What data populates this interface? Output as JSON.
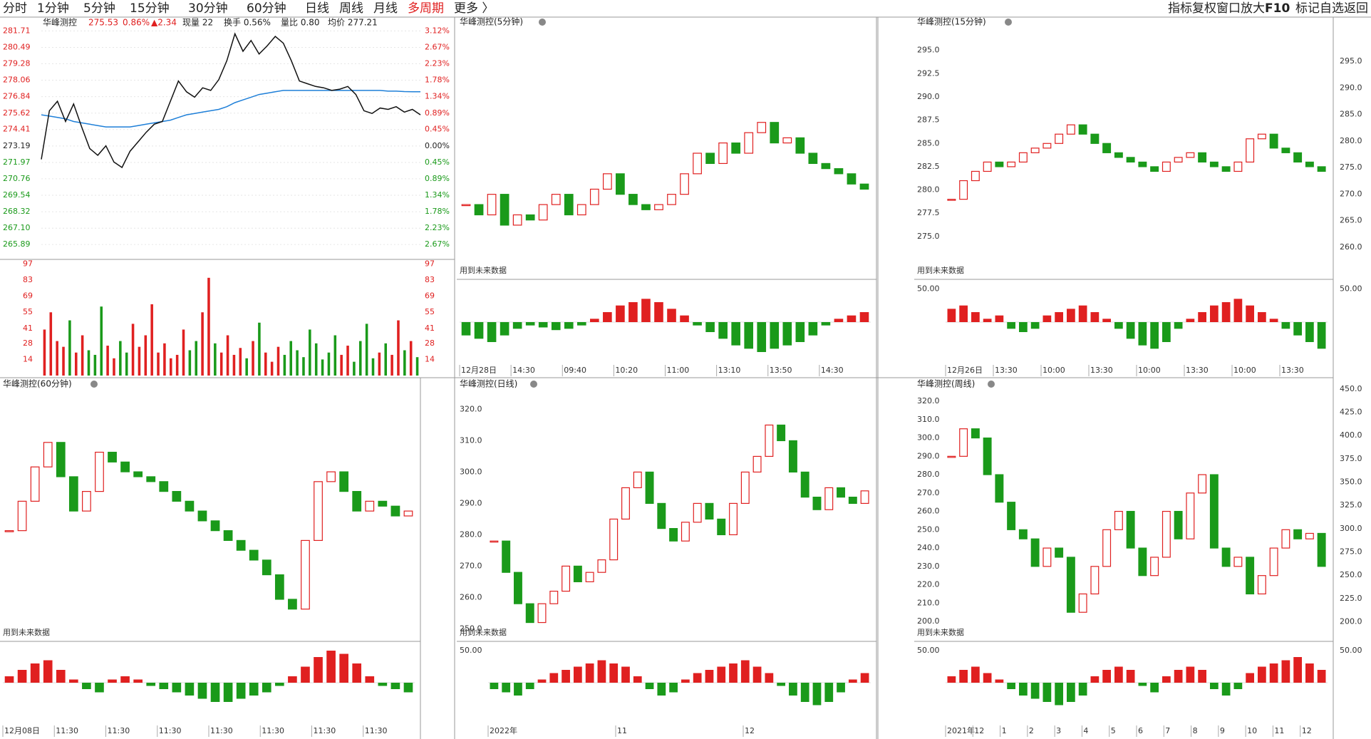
{
  "toolbar": {
    "left": [
      "分时",
      "1分钟",
      "5分钟",
      "15分钟",
      "30分钟",
      "60分钟",
      "日线",
      "周线",
      "月线",
      "多周期",
      "更多 〉"
    ],
    "right": [
      "指标",
      "复权",
      "窗口",
      "放大",
      "F10",
      "标记",
      "自选",
      "返回"
    ]
  },
  "intraday": {
    "header": {
      "name": "华峰测控",
      "price": "275.53",
      "pct": "0.86%",
      "change": "▲2.34",
      "volume": "现量 22",
      "turnover": "换手 0.56%",
      "ratio": "量比 0.80",
      "avg": "均价 277.21"
    },
    "ylim": [
      264.79,
      282.68
    ],
    "ylabels": [
      "281.71",
      "280.49",
      "279.28",
      "278.06",
      "276.84",
      "275.62",
      "274.41",
      "273.19",
      "271.97",
      "270.76",
      "269.54",
      "268.32",
      "267.10",
      "265.89"
    ],
    "ylabels_right": [
      "3.12%",
      "2.67%",
      "2.23%",
      "1.78%",
      "1.34%",
      "0.89%",
      "0.45%",
      "0.00%",
      "0.45%",
      "0.89%",
      "1.34%",
      "1.78%",
      "2.23%",
      "2.67%"
    ],
    "price": [
      272.2,
      275.8,
      276.5,
      275.0,
      276.3,
      274.6,
      273.0,
      272.5,
      273.2,
      272.0,
      271.6,
      272.8,
      273.5,
      274.2,
      274.8,
      275.0,
      276.5,
      278.0,
      277.2,
      276.8,
      277.5,
      277.3,
      278.1,
      279.5,
      281.5,
      280.2,
      281.0,
      280.0,
      280.6,
      281.3,
      280.8,
      279.5,
      278.0,
      277.8,
      277.6,
      277.5,
      277.3,
      277.4,
      277.6,
      277.0,
      275.8,
      275.6,
      276.0,
      275.9,
      276.1,
      275.7,
      275.9,
      275.5
    ],
    "avg": [
      275.5,
      275.4,
      275.3,
      275.2,
      275.0,
      274.9,
      274.8,
      274.7,
      274.6,
      274.6,
      274.6,
      274.6,
      274.7,
      274.8,
      274.9,
      275.0,
      275.1,
      275.3,
      275.5,
      275.6,
      275.7,
      275.8,
      275.9,
      276.1,
      276.4,
      276.6,
      276.8,
      277.0,
      277.1,
      277.2,
      277.3,
      277.3,
      277.3,
      277.3,
      277.3,
      277.3,
      277.3,
      277.3,
      277.3,
      277.3,
      277.3,
      277.3,
      277.3,
      277.25,
      277.25,
      277.22,
      277.21,
      277.21
    ],
    "vlim": [
      0,
      101
    ],
    "vlabels": [
      "97",
      "83",
      "69",
      "55",
      "41",
      "28",
      "14"
    ],
    "volume": [
      40,
      55,
      30,
      25,
      48,
      20,
      35,
      22,
      18,
      60,
      26,
      15,
      30,
      20,
      45,
      25,
      35,
      62,
      20,
      28,
      15,
      18,
      40,
      22,
      30,
      55,
      85,
      28,
      20,
      35,
      18,
      24,
      15,
      30,
      46,
      20,
      12,
      25,
      18,
      30,
      22,
      16,
      40,
      28,
      14,
      20,
      35,
      18,
      26,
      12,
      30,
      45,
      15,
      20,
      28,
      18,
      48,
      22,
      30,
      16
    ]
  },
  "panels": [
    {
      "title": "华峰测控(5分钟)",
      "ylim": [
        268,
        292
      ],
      "note": "用到未来数据",
      "xlabels": [
        "12月28日",
        "14:30",
        "09:40",
        "10:20",
        "11:00",
        "13:10",
        "13:50",
        "14:30"
      ],
      "closes": [
        275,
        274,
        276,
        273,
        274,
        273.5,
        275,
        276,
        274,
        275,
        276.5,
        278,
        276,
        275,
        274.5,
        275,
        276,
        278,
        280,
        279,
        281,
        280,
        282,
        283,
        281,
        281.5,
        280,
        279,
        278.5,
        278,
        277,
        276.5
      ],
      "osc": [
        -20,
        -25,
        -30,
        -20,
        -10,
        -5,
        -8,
        -12,
        -10,
        -5,
        5,
        15,
        25,
        30,
        35,
        30,
        20,
        10,
        -5,
        -15,
        -25,
        -35,
        -40,
        -45,
        -40,
        -35,
        -30,
        -20,
        -5,
        5,
        10,
        15
      ]
    },
    {
      "title": "华峰测控(15分钟)",
      "ylim": [
        270.7,
        297.2
      ],
      "note": "用到未来数据",
      "ylabels": [
        "295.0",
        "292.5",
        "290.0",
        "287.5",
        "285.0",
        "282.5",
        "280.0",
        "277.5",
        "275.0"
      ],
      "y2lim": [
        254.5,
        300.9
      ],
      "ylabels_right": [
        "295.0",
        "290.0",
        "285.0",
        "280.0",
        "275.0",
        "270.0",
        "265.0",
        "260.0"
      ],
      "ind_tick": {
        "value": 50,
        "label": "50.00"
      },
      "ind_tick_right": {
        "value": 50,
        "label": "50.00"
      },
      "xlabels": [
        "12月26日",
        "13:30",
        "10:00",
        "13:30",
        "10:00",
        "13:30",
        "10:00",
        "13:30"
      ],
      "closes": [
        279,
        281,
        282,
        283,
        282.5,
        283,
        284,
        284.5,
        285,
        286,
        287,
        286,
        285,
        284,
        283.5,
        283,
        282.5,
        282,
        283,
        283.5,
        284,
        283,
        282.5,
        282,
        283,
        285.5,
        286,
        284.5,
        284,
        283,
        282.5,
        282
      ],
      "osc": [
        20,
        25,
        15,
        5,
        10,
        -10,
        -15,
        -10,
        10,
        15,
        20,
        25,
        15,
        5,
        -10,
        -25,
        -35,
        -40,
        -30,
        -10,
        5,
        15,
        25,
        30,
        35,
        25,
        15,
        5,
        -10,
        -20,
        -30,
        -40
      ]
    },
    {
      "title": "华峰测控(60分钟)",
      "ylim": [
        250,
        300
      ],
      "note": "用到未来数据",
      "xlabels": [
        "12月08日",
        "11:30",
        "11:30",
        "11:30",
        "11:30",
        "11:30",
        "11:30",
        "11:30"
      ],
      "closes": [
        272,
        278,
        285,
        290,
        283,
        276,
        280,
        288,
        286,
        284,
        283,
        282,
        280,
        278,
        276,
        274,
        272,
        270,
        268,
        266,
        263,
        258,
        256,
        270,
        282,
        284,
        280,
        276,
        278,
        277,
        275,
        276
      ],
      "osc": [
        10,
        20,
        30,
        35,
        20,
        5,
        -10,
        -15,
        5,
        10,
        5,
        -5,
        -10,
        -15,
        -20,
        -25,
        -30,
        -30,
        -25,
        -20,
        -15,
        -5,
        10,
        25,
        40,
        50,
        45,
        30,
        10,
        -5,
        -10,
        -15
      ]
    },
    {
      "title": "华峰测控(日线)",
      "ylim": [
        246.9,
        325.1
      ],
      "note": "用到未来数据",
      "ylabels": [
        "320.0",
        "310.0",
        "300.0",
        "290.0",
        "280.0",
        "270.0",
        "260.0",
        "250.0"
      ],
      "ind_tick": {
        "value": 50,
        "label": "50.00"
      },
      "xlabels": [
        "2022年",
        "11",
        "12"
      ],
      "closes": [
        278,
        268,
        258,
        252,
        258,
        262,
        270,
        265,
        268,
        272,
        285,
        295,
        300,
        290,
        282,
        278,
        284,
        290,
        285,
        280,
        290,
        300,
        305,
        315,
        310,
        300,
        292,
        288,
        295,
        292,
        290,
        294
      ],
      "osc": [
        -10,
        -15,
        -20,
        -10,
        5,
        15,
        20,
        25,
        30,
        35,
        30,
        25,
        10,
        -10,
        -20,
        -15,
        5,
        15,
        20,
        25,
        30,
        35,
        25,
        15,
        -5,
        -20,
        -30,
        -35,
        -30,
        -15,
        5,
        15
      ]
    },
    {
      "title": "华峰测控(周线)",
      "ylim": [
        190.7,
        324.3
      ],
      "note": "用到未来数据",
      "ylabels": [
        "320.0",
        "310.0",
        "300.0",
        "290.0",
        "280.0",
        "270.0",
        "260.0",
        "250.0",
        "240.0",
        "230.0",
        "220.0",
        "210.0",
        "200.0"
      ],
      "y2lim": [
        182,
        445.3
      ],
      "ylabels_right": [
        "450.0",
        "425.0",
        "400.0",
        "375.0",
        "350.0",
        "325.0",
        "300.0",
        "275.0",
        "250.0",
        "225.0",
        "200.0"
      ],
      "ind_tick": {
        "value": 50,
        "label": "50.00"
      },
      "ind_tick_right": {
        "value": 50,
        "label": "50.00"
      },
      "xlabels": [
        "2021年",
        "12",
        "1",
        "2",
        "3",
        "4",
        "5",
        "6",
        "7",
        "8",
        "9",
        "10",
        "11",
        "12"
      ],
      "closes": [
        290,
        305,
        300,
        280,
        265,
        250,
        245,
        230,
        240,
        235,
        205,
        215,
        230,
        250,
        260,
        240,
        225,
        235,
        260,
        245,
        270,
        280,
        240,
        230,
        235,
        215,
        225,
        240,
        250,
        245,
        248,
        230
      ],
      "osc": [
        10,
        20,
        25,
        15,
        5,
        -10,
        -20,
        -25,
        -30,
        -35,
        -30,
        -20,
        10,
        20,
        25,
        20,
        -5,
        -15,
        10,
        20,
        25,
        20,
        -10,
        -20,
        -10,
        15,
        25,
        30,
        35,
        40,
        30,
        20
      ]
    }
  ]
}
